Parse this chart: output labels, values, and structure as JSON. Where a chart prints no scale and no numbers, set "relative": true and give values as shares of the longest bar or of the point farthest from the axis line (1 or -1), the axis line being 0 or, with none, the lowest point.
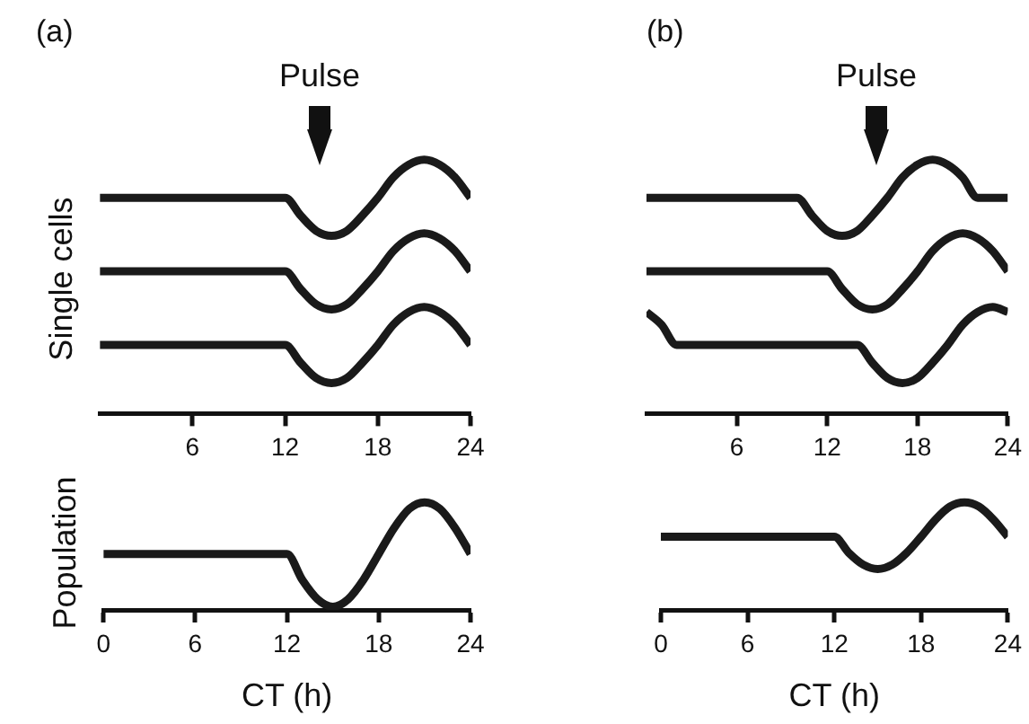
{
  "chart_data": [
    {
      "type": "line",
      "title": "(a)",
      "ylabel": "Single cells",
      "relative": true,
      "xlim": [
        0,
        24
      ],
      "xticks": [
        6,
        12,
        18,
        24
      ],
      "grid": false,
      "legend": false,
      "marker": "none",
      "line_style": "solid",
      "annotations": [
        "Pulse"
      ],
      "series": [
        {
          "color": "#1a1a1a",
          "x": [
            0,
            12,
            13,
            14,
            15,
            16,
            17,
            18,
            19,
            20,
            21,
            22,
            23,
            24
          ],
          "values": [
            0.85,
            0.85,
            0.78,
            0.72,
            0.7,
            0.72,
            0.78,
            0.85,
            0.93,
            0.98,
            1,
            0.98,
            0.93,
            0.85
          ]
        },
        {
          "color": "#1a1a1a",
          "x": [
            0,
            12,
            13,
            14,
            15,
            16,
            17,
            18,
            19,
            20,
            21,
            22,
            23,
            24
          ],
          "values": [
            0.56,
            0.56,
            0.49,
            0.43,
            0.41,
            0.43,
            0.49,
            0.56,
            0.64,
            0.69,
            0.71,
            0.69,
            0.64,
            0.56
          ]
        },
        {
          "color": "#1a1a1a",
          "x": [
            0,
            12,
            13,
            14,
            15,
            16,
            17,
            18,
            19,
            20,
            21,
            22,
            23,
            24
          ],
          "values": [
            0.27,
            0.27,
            0.2,
            0.14,
            0.12,
            0.14,
            0.2,
            0.27,
            0.35,
            0.4,
            0.42,
            0.4,
            0.35,
            0.27
          ]
        }
      ]
    },
    {
      "type": "line",
      "title": "(b)",
      "relative": true,
      "xlim": [
        0,
        24
      ],
      "xticks": [
        6,
        12,
        18,
        24
      ],
      "grid": false,
      "legend": false,
      "marker": "none",
      "line_style": "solid",
      "annotations": [
        "Pulse"
      ],
      "series": [
        {
          "color": "#1a1a1a",
          "x": [
            0,
            10,
            11,
            12,
            13,
            14,
            15,
            16,
            17,
            18,
            19,
            20,
            21,
            22,
            24
          ],
          "values": [
            0.85,
            0.85,
            0.78,
            0.72,
            0.7,
            0.72,
            0.78,
            0.85,
            0.93,
            0.98,
            1,
            0.98,
            0.93,
            0.85,
            0.85
          ]
        },
        {
          "color": "#1a1a1a",
          "x": [
            0,
            12,
            13,
            14,
            15,
            16,
            17,
            18,
            19,
            20,
            21,
            22,
            23,
            24
          ],
          "values": [
            0.56,
            0.56,
            0.49,
            0.43,
            0.41,
            0.43,
            0.49,
            0.56,
            0.64,
            0.69,
            0.71,
            0.69,
            0.64,
            0.56
          ]
        },
        {
          "color": "#1a1a1a",
          "x": [
            0,
            1,
            2,
            14,
            15,
            16,
            17,
            18,
            19,
            20,
            21,
            22,
            23,
            24
          ],
          "values": [
            0.4,
            0.35,
            0.27,
            0.27,
            0.2,
            0.14,
            0.12,
            0.14,
            0.2,
            0.27,
            0.35,
            0.4,
            0.42,
            0.4
          ]
        }
      ]
    },
    {
      "type": "line",
      "xlabel": "CT (h)",
      "ylabel": "Population",
      "relative": true,
      "xlim": [
        0,
        24
      ],
      "xticks": [
        0,
        6,
        12,
        18,
        24
      ],
      "grid": false,
      "legend": false,
      "marker": "none",
      "line_style": "solid",
      "series": [
        {
          "color": "#1a1a1a",
          "x": [
            0,
            12,
            13,
            14,
            15,
            16,
            17,
            18,
            19,
            20,
            21,
            22,
            23,
            24
          ],
          "values": [
            0.52,
            0.52,
            0.28,
            0.1,
            0.03,
            0.1,
            0.28,
            0.52,
            0.76,
            0.94,
            1,
            0.94,
            0.76,
            0.52
          ]
        }
      ]
    },
    {
      "type": "line",
      "xlabel": "CT (h)",
      "relative": true,
      "xlim": [
        0,
        24
      ],
      "xticks": [
        0,
        6,
        12,
        18,
        24
      ],
      "grid": false,
      "legend": false,
      "marker": "none",
      "line_style": "solid",
      "series": [
        {
          "color": "#1a1a1a",
          "x": [
            0,
            12,
            13,
            14,
            15,
            16,
            17,
            18,
            19,
            20,
            21,
            22,
            23,
            24
          ],
          "values": [
            0.68,
            0.68,
            0.53,
            0.42,
            0.38,
            0.42,
            0.53,
            0.68,
            0.84,
            0.96,
            1,
            0.96,
            0.84,
            0.68
          ]
        }
      ]
    }
  ]
}
